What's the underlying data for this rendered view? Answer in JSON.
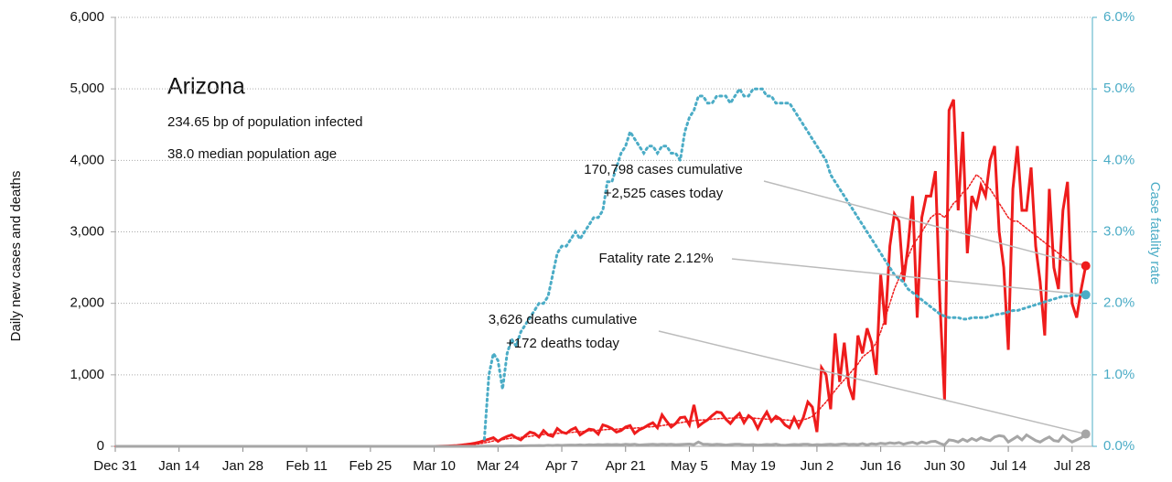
{
  "chart_data": {
    "type": "line",
    "title": "Arizona",
    "subtitle": [
      "234.65 bp of population infected",
      "38.0 median population age"
    ],
    "y_label": "Daily new cases and deaths",
    "y2_label": "Case fatality rate",
    "categories": [
      "Dec 31",
      null,
      null,
      null,
      null,
      null,
      null,
      null,
      null,
      null,
      null,
      null,
      null,
      null,
      "Jan 14",
      null,
      null,
      null,
      null,
      null,
      null,
      null,
      null,
      null,
      null,
      null,
      null,
      null,
      "Jan 28",
      null,
      null,
      null,
      null,
      null,
      null,
      null,
      null,
      null,
      null,
      null,
      null,
      null,
      "Feb 11",
      null,
      null,
      null,
      null,
      null,
      null,
      null,
      null,
      null,
      null,
      null,
      null,
      null,
      "Feb 25",
      null,
      null,
      null,
      null,
      null,
      null,
      null,
      null,
      null,
      null,
      null,
      null,
      null,
      "Mar 10",
      null,
      null,
      null,
      null,
      null,
      null,
      null,
      null,
      null,
      null,
      null,
      null,
      null,
      "Mar 24",
      null,
      null,
      null,
      null,
      null,
      null,
      null,
      null,
      null,
      null,
      null,
      null,
      null,
      "Apr 7",
      null,
      null,
      null,
      null,
      null,
      null,
      null,
      null,
      null,
      null,
      null,
      null,
      null,
      "Apr 21",
      null,
      null,
      null,
      null,
      null,
      null,
      null,
      null,
      null,
      null,
      null,
      null,
      null,
      "May 5",
      null,
      null,
      null,
      null,
      null,
      null,
      null,
      null,
      null,
      null,
      null,
      null,
      null,
      "May 19",
      null,
      null,
      null,
      null,
      null,
      null,
      null,
      null,
      null,
      null,
      null,
      null,
      null,
      "Jun 2",
      null,
      null,
      null,
      null,
      null,
      null,
      null,
      null,
      null,
      null,
      null,
      null,
      null,
      "Jun 16",
      null,
      null,
      null,
      null,
      null,
      null,
      null,
      null,
      null,
      null,
      null,
      null,
      null,
      "Jun 30",
      null,
      null,
      null,
      null,
      null,
      null,
      null,
      null,
      null,
      null,
      null,
      null,
      null,
      "Jul 14",
      null,
      null,
      null,
      null,
      null,
      null,
      null,
      null,
      null,
      null,
      null,
      null,
      null,
      "Jul 28",
      null,
      null,
      null
    ],
    "series": [
      {
        "color": "#ee1c1c",
        "style": "solid",
        "axis": "y",
        "values": [
          0,
          0,
          0,
          0,
          0,
          0,
          0,
          0,
          0,
          0,
          0,
          0,
          0,
          0,
          0,
          0,
          0,
          0,
          0,
          0,
          0,
          0,
          0,
          0,
          0,
          0,
          0,
          0,
          0,
          0,
          0,
          0,
          0,
          0,
          0,
          0,
          0,
          0,
          0,
          0,
          0,
          0,
          0,
          0,
          0,
          0,
          0,
          0,
          0,
          0,
          0,
          0,
          0,
          0,
          0,
          0,
          0,
          0,
          0,
          0,
          0,
          0,
          0,
          0,
          0,
          0,
          0,
          0,
          0,
          0,
          0,
          1,
          2,
          5,
          8,
          12,
          18,
          25,
          35,
          45,
          60,
          80,
          100,
          120,
          70,
          110,
          140,
          160,
          120,
          90,
          150,
          200,
          180,
          130,
          220,
          160,
          140,
          250,
          200,
          180,
          230,
          260,
          160,
          200,
          240,
          230,
          170,
          300,
          280,
          250,
          200,
          220,
          270,
          290,
          180,
          230,
          260,
          300,
          330,
          260,
          440,
          350,
          270,
          320,
          400,
          410,
          300,
          580,
          280,
          330,
          370,
          430,
          480,
          470,
          380,
          320,
          400,
          460,
          330,
          430,
          380,
          250,
          380,
          480,
          350,
          420,
          380,
          300,
          260,
          400,
          270,
          400,
          620,
          550,
          200,
          1100,
          1000,
          520,
          1580,
          900,
          1450,
          850,
          650,
          1550,
          1300,
          1650,
          1450,
          1000,
          2400,
          1700,
          2800,
          3250,
          3150,
          2300,
          2800,
          3500,
          1800,
          3200,
          3500,
          3500,
          3850,
          2000,
          650,
          4700,
          4850,
          3300,
          4400,
          2700,
          3500,
          3350,
          3650,
          3500,
          4000,
          4200,
          3000,
          2500,
          1350,
          3600,
          4200,
          3300,
          3300,
          3900,
          2800,
          2300,
          1550,
          3600,
          2500,
          2200,
          3300,
          3700,
          2000,
          1800,
          2200,
          2525
        ]
      },
      {
        "color": "#ee1c1c",
        "style": "dotted",
        "axis": "y",
        "values": [
          0,
          0,
          0,
          0,
          0,
          0,
          0,
          0,
          0,
          0,
          0,
          0,
          0,
          0,
          0,
          0,
          0,
          0,
          0,
          0,
          0,
          0,
          0,
          0,
          0,
          0,
          0,
          0,
          0,
          0,
          0,
          0,
          0,
          0,
          0,
          0,
          0,
          0,
          0,
          0,
          0,
          0,
          0,
          0,
          0,
          0,
          0,
          0,
          0,
          0,
          0,
          0,
          0,
          0,
          0,
          0,
          0,
          0,
          0,
          0,
          0,
          0,
          0,
          0,
          0,
          0,
          0,
          0,
          0,
          0,
          0,
          0,
          1,
          2,
          4,
          7,
          10,
          15,
          21,
          28,
          37,
          48,
          60,
          75,
          85,
          95,
          105,
          115,
          120,
          125,
          130,
          140,
          150,
          155,
          165,
          170,
          175,
          180,
          185,
          190,
          195,
          200,
          205,
          210,
          215,
          220,
          225,
          230,
          235,
          240,
          240,
          245,
          250,
          255,
          255,
          260,
          265,
          270,
          275,
          280,
          290,
          300,
          310,
          320,
          330,
          340,
          350,
          360,
          365,
          370,
          375,
          380,
          385,
          390,
          390,
          395,
          395,
          400,
          400,
          400,
          395,
          390,
          385,
          380,
          380,
          380,
          375,
          370,
          365,
          360,
          360,
          370,
          390,
          420,
          480,
          550,
          620,
          700,
          780,
          860,
          930,
          1000,
          1080,
          1150,
          1250,
          1300,
          1350,
          1450,
          1600,
          1800,
          2000,
          2200,
          2350,
          2500,
          2650,
          2800,
          2900,
          3000,
          3100,
          3200,
          3250,
          3250,
          3200,
          3300,
          3400,
          3450,
          3550,
          3600,
          3700,
          3800,
          3750,
          3650,
          3600,
          3500,
          3400,
          3300,
          3200,
          3150,
          3150,
          3100,
          3050,
          3000,
          2950,
          2900,
          2850,
          2800,
          2750,
          2700,
          2650,
          2600,
          2600,
          2550,
          2550,
          2500
        ]
      },
      {
        "color": "#a6a6a6",
        "style": "solid",
        "axis": "y",
        "values": [
          0,
          0,
          0,
          0,
          0,
          0,
          0,
          0,
          0,
          0,
          0,
          0,
          0,
          0,
          0,
          0,
          0,
          0,
          0,
          0,
          0,
          0,
          0,
          0,
          0,
          0,
          0,
          0,
          0,
          0,
          0,
          0,
          0,
          0,
          0,
          0,
          0,
          0,
          0,
          0,
          0,
          0,
          0,
          0,
          0,
          0,
          0,
          0,
          0,
          0,
          0,
          0,
          0,
          0,
          0,
          0,
          0,
          0,
          0,
          0,
          0,
          0,
          0,
          0,
          0,
          0,
          0,
          0,
          0,
          0,
          0,
          0,
          0,
          0,
          0,
          0,
          0,
          0,
          0,
          0,
          1,
          2,
          2,
          3,
          3,
          4,
          5,
          6,
          5,
          7,
          8,
          10,
          9,
          12,
          10,
          14,
          12,
          15,
          13,
          16,
          18,
          15,
          20,
          17,
          22,
          19,
          24,
          20,
          26,
          22,
          25,
          20,
          28,
          24,
          30,
          18,
          22,
          26,
          28,
          24,
          30,
          25,
          28,
          22,
          26,
          30,
          32,
          24,
          60,
          30,
          28,
          22,
          30,
          26,
          18,
          24,
          28,
          30,
          22,
          20,
          24,
          18,
          20,
          26,
          22,
          30,
          18,
          14,
          20,
          26,
          22,
          30,
          28,
          18,
          24,
          20,
          26,
          30,
          22,
          28,
          34,
          26,
          30,
          24,
          38,
          20,
          36,
          30,
          42,
          34,
          48,
          40,
          52,
          30,
          46,
          58,
          34,
          62,
          44,
          66,
          70,
          40,
          20,
          90,
          80,
          60,
          100,
          70,
          110,
          80,
          120,
          95,
          80,
          130,
          150,
          140,
          60,
          100,
          140,
          90,
          160,
          120,
          80,
          60,
          100,
          130,
          80,
          70,
          150,
          100,
          60,
          90,
          120,
          172
        ]
      },
      {
        "color": "#4bacc6",
        "style": "dotted",
        "axis": "y2",
        "values": [
          null,
          null,
          null,
          null,
          null,
          null,
          null,
          null,
          null,
          null,
          null,
          null,
          null,
          null,
          null,
          null,
          null,
          null,
          null,
          null,
          null,
          null,
          null,
          null,
          null,
          null,
          null,
          null,
          null,
          null,
          null,
          null,
          null,
          null,
          null,
          null,
          null,
          null,
          null,
          null,
          null,
          null,
          null,
          null,
          null,
          null,
          null,
          null,
          null,
          null,
          null,
          null,
          null,
          null,
          null,
          null,
          null,
          null,
          null,
          null,
          null,
          null,
          null,
          null,
          null,
          null,
          null,
          null,
          null,
          null,
          null,
          null,
          null,
          null,
          null,
          null,
          null,
          null,
          null,
          null,
          null,
          0.1,
          1.0,
          1.3,
          1.2,
          0.8,
          1.3,
          1.5,
          1.4,
          1.6,
          1.7,
          1.8,
          1.9,
          2.0,
          2.0,
          2.1,
          2.4,
          2.7,
          2.8,
          2.8,
          2.9,
          3.0,
          2.9,
          3.0,
          3.1,
          3.2,
          3.2,
          3.3,
          3.7,
          3.7,
          3.9,
          4.1,
          4.2,
          4.4,
          4.3,
          4.2,
          4.1,
          4.2,
          4.2,
          4.1,
          4.2,
          4.2,
          4.1,
          4.1,
          4.0,
          4.4,
          4.6,
          4.7,
          4.9,
          4.9,
          4.8,
          4.8,
          4.9,
          4.9,
          4.9,
          4.8,
          4.9,
          5.0,
          4.9,
          4.9,
          5.0,
          5.0,
          5.0,
          4.9,
          4.9,
          4.8,
          4.8,
          4.8,
          4.8,
          4.7,
          4.6,
          4.5,
          4.4,
          4.3,
          4.2,
          4.1,
          4.0,
          3.8,
          3.7,
          3.6,
          3.5,
          3.4,
          3.3,
          3.2,
          3.1,
          3.0,
          2.9,
          2.8,
          2.7,
          2.6,
          2.5,
          2.4,
          2.35,
          2.3,
          2.2,
          2.15,
          2.1,
          2.05,
          2.0,
          1.95,
          1.9,
          1.85,
          1.82,
          1.8,
          1.8,
          1.8,
          1.78,
          1.78,
          1.8,
          1.8,
          1.8,
          1.8,
          1.82,
          1.84,
          1.85,
          1.86,
          1.88,
          1.9,
          1.9,
          1.92,
          1.94,
          1.96,
          1.98,
          2.0,
          2.02,
          2.04,
          2.06,
          2.08,
          2.1,
          2.1,
          2.11,
          2.11,
          2.12,
          2.12
        ]
      }
    ],
    "annotations": [
      {
        "lines": [
          "170,798 cases cumulative",
          "+2,525 cases today"
        ]
      },
      {
        "lines": [
          "Fatality rate 2.12%"
        ]
      },
      {
        "lines": [
          "3,626 deaths cumulative",
          "+172 deaths today"
        ]
      }
    ],
    "ylim": [
      0,
      6000
    ],
    "yticks": [
      0,
      {
        "value": 1000,
        "label": "1,000"
      },
      {
        "value": 2000,
        "label": "2,000"
      },
      {
        "value": 3000,
        "label": "3,000"
      },
      {
        "value": 4000,
        "label": "4,000"
      },
      {
        "value": 5000,
        "label": "5,000"
      },
      {
        "value": 6000,
        "label": "6,000"
      }
    ],
    "y2lim": [
      0,
      6
    ],
    "y2ticks": [
      {
        "value": 0,
        "label": "0.0%"
      },
      {
        "value": 1,
        "label": "1.0%"
      },
      {
        "value": 2,
        "label": "2.0%"
      },
      {
        "value": 3,
        "label": "3.0%"
      },
      {
        "value": 4,
        "label": "4.0%"
      },
      {
        "value": 5,
        "label": "5.0%"
      },
      {
        "value": 6,
        "label": "6.0%"
      }
    ],
    "grid": true
  }
}
